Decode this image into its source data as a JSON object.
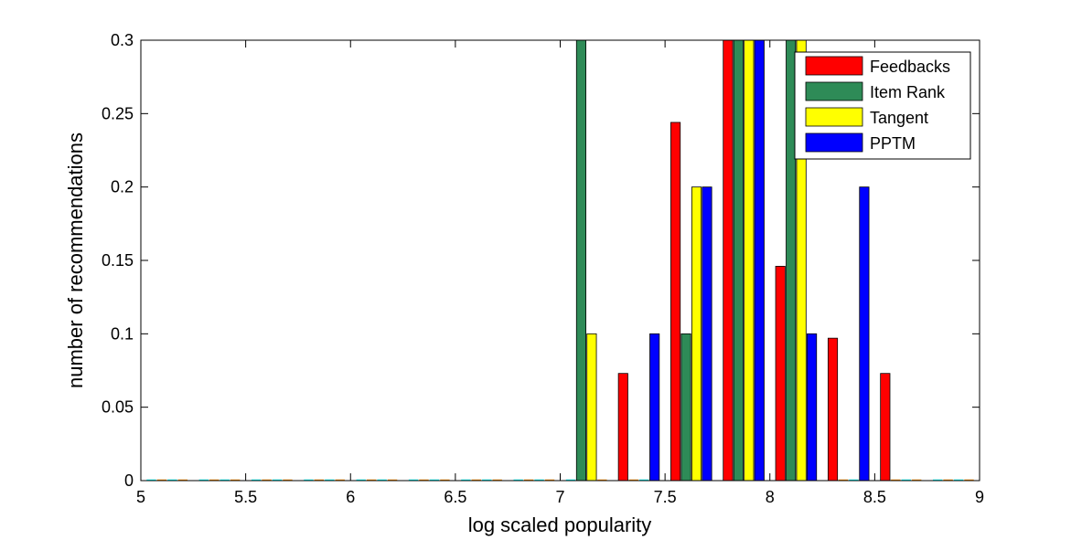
{
  "chart_data": {
    "type": "bar",
    "xlabel": "log scaled popularity",
    "ylabel": "number of recommendations",
    "xlim": [
      5,
      9
    ],
    "ylim": [
      0,
      0.3
    ],
    "x_ticks": [
      "5",
      "5.5",
      "6",
      "6.5",
      "7",
      "7.5",
      "8",
      "8.5",
      "9"
    ],
    "y_ticks": [
      "0",
      "0.05",
      "0.1",
      "0.15",
      "0.2",
      "0.25",
      "0.3"
    ],
    "x_tick_values": [
      5,
      5.5,
      6,
      6.5,
      7,
      7.5,
      8,
      8.5,
      9
    ],
    "y_tick_values": [
      0,
      0.05,
      0.1,
      0.15,
      0.2,
      0.25,
      0.3
    ],
    "bin_centers": [
      5.125,
      5.375,
      5.625,
      5.875,
      6.125,
      6.375,
      6.625,
      6.875,
      7.125,
      7.375,
      7.625,
      7.875,
      8.125,
      8.375,
      8.625,
      8.875
    ],
    "grid": false,
    "legend_position": "top-right",
    "series": [
      {
        "name": "Feedbacks",
        "color": "#ff0000",
        "values": [
          0,
          0,
          0,
          0,
          0,
          0,
          0,
          0,
          0,
          0.073,
          0.244,
          0.3,
          0.146,
          0.097,
          0.073,
          0
        ]
      },
      {
        "name": "Item Rank",
        "color": "#2e8b57",
        "values": [
          0,
          0,
          0,
          0,
          0,
          0,
          0,
          0,
          0.3,
          0,
          0.1,
          0.3,
          0.3,
          0,
          0,
          0
        ]
      },
      {
        "name": "Tangent",
        "color": "#ffff00",
        "values": [
          0,
          0,
          0,
          0,
          0,
          0,
          0,
          0,
          0.1,
          0,
          0.2,
          0.3,
          0.3,
          0,
          0,
          0
        ]
      },
      {
        "name": "PPTM",
        "color": "#0000ff",
        "values": [
          0,
          0,
          0,
          0,
          0,
          0,
          0,
          0,
          0,
          0.1,
          0.2,
          0.3,
          0.1,
          0.2,
          0,
          0
        ]
      }
    ],
    "zero_marker_colors": [
      "#00ffff",
      "#ff8c00"
    ]
  }
}
